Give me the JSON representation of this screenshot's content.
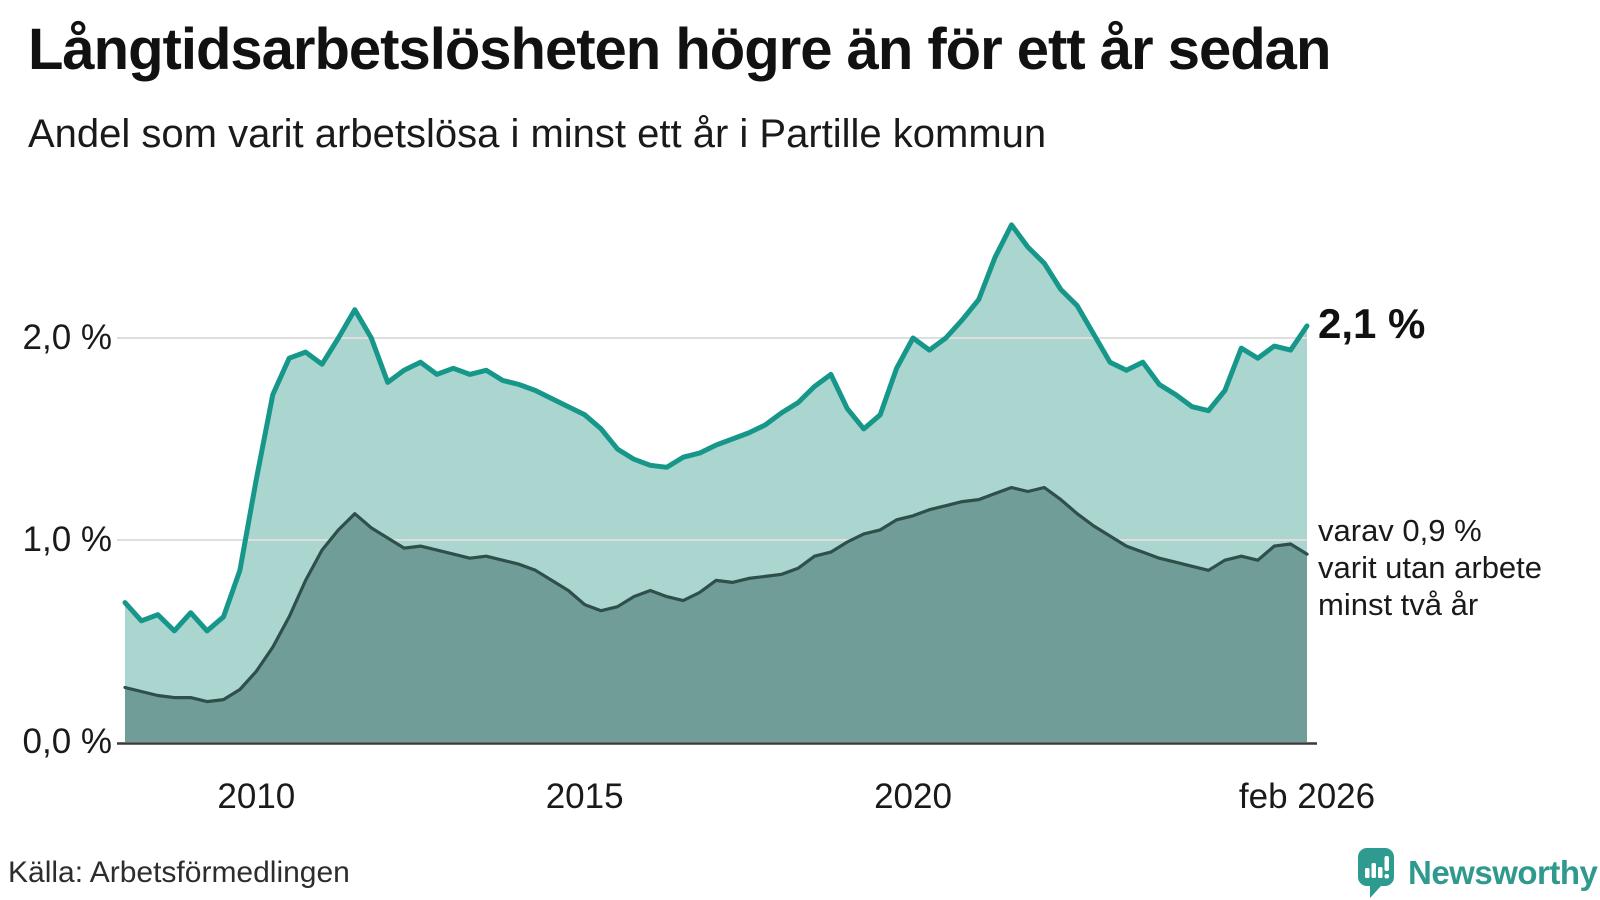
{
  "header": {
    "title": "Långtidsarbetslösheten högre än för ett år sedan",
    "subtitle": "Andel som varit arbetslösa i minst ett år i Partille kommun"
  },
  "chart_data": {
    "type": "area",
    "title": "Långtidsarbetslösheten högre än för ett år sedan",
    "subtitle": "Andel som varit arbetslösa i minst ett år i Partille kommun",
    "unit": "percent",
    "x_start": 2008.08,
    "x_step": 0.25,
    "x_end": 2026.08,
    "ylim": [
      0,
      2.7
    ],
    "grid": "horizontal",
    "legend": "none",
    "x_axis": {
      "ticks": [
        {
          "label": "2010",
          "value": 2010.08
        },
        {
          "label": "2015",
          "value": 2015.08
        },
        {
          "label": "2020",
          "value": 2020.08
        },
        {
          "label": "feb 2026",
          "value": 2026.08
        }
      ]
    },
    "y_axis": {
      "ticks": [
        {
          "label": "0,0 %",
          "value": 0
        },
        {
          "label": "1,0 %",
          "value": 1
        },
        {
          "label": "2,0 %",
          "value": 2
        }
      ]
    },
    "series": [
      {
        "name": "Andel arbetslösa minst ett år",
        "fill": "#abd6d0",
        "line": "#16978a",
        "values": [
          0.69,
          0.6,
          0.63,
          0.55,
          0.64,
          0.55,
          0.62,
          0.85,
          1.3,
          1.72,
          1.9,
          1.93,
          1.87,
          2.0,
          2.14,
          2.0,
          1.78,
          1.84,
          1.88,
          1.82,
          1.85,
          1.82,
          1.84,
          1.79,
          1.77,
          1.74,
          1.7,
          1.66,
          1.62,
          1.55,
          1.45,
          1.4,
          1.37,
          1.36,
          1.41,
          1.43,
          1.47,
          1.5,
          1.53,
          1.57,
          1.63,
          1.68,
          1.76,
          1.82,
          1.65,
          1.55,
          1.62,
          1.85,
          2.0,
          1.94,
          2.0,
          2.09,
          2.19,
          2.4,
          2.56,
          2.45,
          2.37,
          2.24,
          2.16,
          2.02,
          1.88,
          1.84,
          1.88,
          1.77,
          1.72,
          1.66,
          1.64,
          1.74,
          1.95,
          1.9,
          1.96,
          1.94,
          2.06
        ]
      },
      {
        "name": "Andel arbetslösa minst två år",
        "fill": "#709d98",
        "line": "#2f4f4a",
        "values": [
          0.27,
          0.25,
          0.23,
          0.22,
          0.22,
          0.2,
          0.21,
          0.26,
          0.35,
          0.47,
          0.62,
          0.8,
          0.95,
          1.05,
          1.13,
          1.06,
          1.01,
          0.96,
          0.97,
          0.95,
          0.93,
          0.91,
          0.92,
          0.9,
          0.88,
          0.85,
          0.8,
          0.75,
          0.68,
          0.65,
          0.67,
          0.72,
          0.75,
          0.72,
          0.7,
          0.74,
          0.8,
          0.79,
          0.81,
          0.82,
          0.83,
          0.86,
          0.92,
          0.94,
          0.99,
          1.03,
          1.05,
          1.1,
          1.12,
          1.15,
          1.17,
          1.19,
          1.2,
          1.23,
          1.26,
          1.24,
          1.26,
          1.2,
          1.13,
          1.07,
          1.02,
          0.97,
          0.94,
          0.91,
          0.89,
          0.87,
          0.85,
          0.9,
          0.92,
          0.9,
          0.97,
          0.98,
          0.93
        ]
      }
    ],
    "annotations": {
      "last_value_label": "2,1 %",
      "secondary_line1": "varav 0,9 %",
      "secondary_line2": "varit utan arbete",
      "secondary_line3": "minst två år"
    },
    "colors": {
      "grid": "#dedede",
      "axis": "#3a3a3a",
      "accent_teal": "#16978a",
      "dark_teal": "#2f4f4a",
      "light_fill": "#abd6d0",
      "dark_fill": "#709d98"
    }
  },
  "footer": {
    "source": "Källa: Arbetsförmedlingen",
    "brand": "Newsworthy",
    "brand_color": "#2f998e"
  }
}
